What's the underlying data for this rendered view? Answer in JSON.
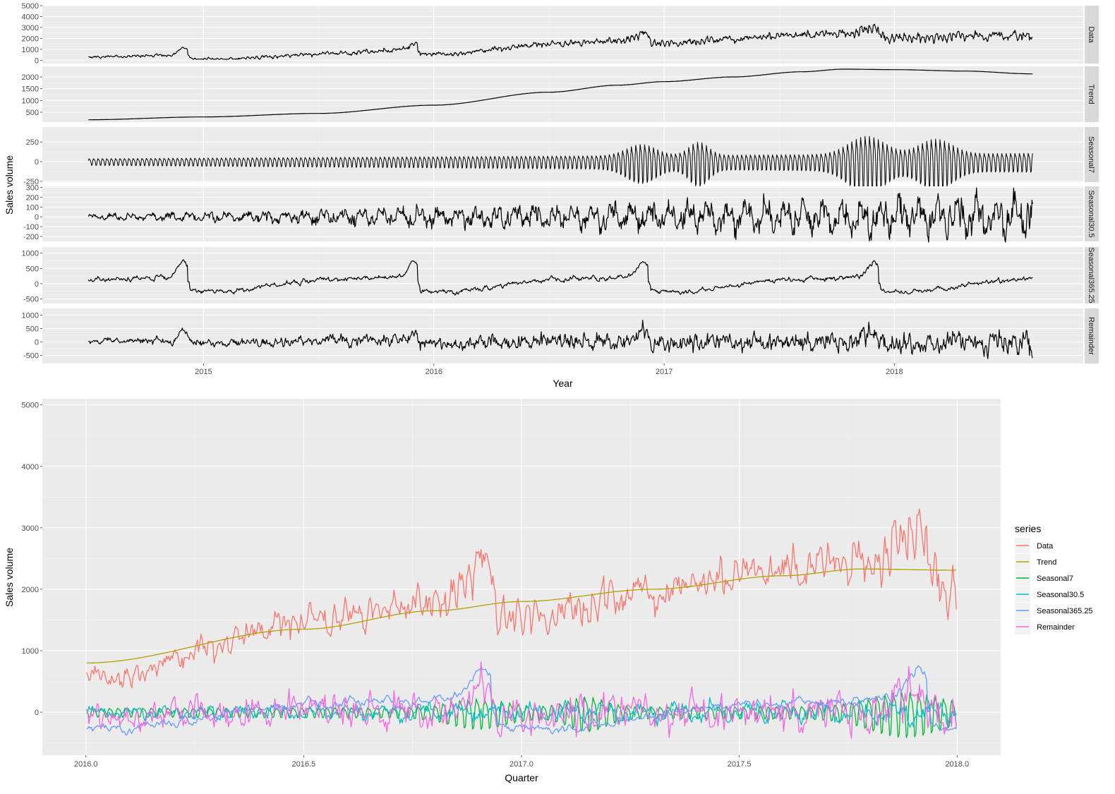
{
  "chart_data": [
    {
      "type": "line",
      "facets": [
        {
          "strip": "Data",
          "ylim": [
            -300,
            5000
          ],
          "yticks": [
            0,
            1000,
            2000,
            3000,
            4000,
            5000
          ],
          "series_key": "data"
        },
        {
          "strip": "Trend",
          "ylim": [
            80,
            2450
          ],
          "yticks": [
            500,
            1000,
            1500,
            2000
          ],
          "series_key": "trend"
        },
        {
          "strip": "Seasonal7",
          "ylim": [
            -260,
            440
          ],
          "yticks": [
            -250,
            0,
            250
          ],
          "series_key": "seasonal7"
        },
        {
          "strip": "Seasonal30.5",
          "ylim": [
            -250,
            310
          ],
          "yticks": [
            -200,
            -100,
            0,
            100,
            200,
            300
          ],
          "series_key": "seasonal30"
        },
        {
          "strip": "Seasonal365.25",
          "ylim": [
            -650,
            1200
          ],
          "yticks": [
            -500,
            0,
            500,
            1000
          ],
          "series_key": "seasonal365"
        },
        {
          "strip": "Remainder",
          "ylim": [
            -800,
            1250
          ],
          "yticks": [
            -500,
            0,
            500,
            1000
          ],
          "series_key": "remainder"
        }
      ],
      "xlim": [
        2014.3,
        2018.82
      ],
      "xticks": [
        2015,
        2016,
        2017,
        2018
      ],
      "xlabel": "Year",
      "ylabel": "Sales volume",
      "x_start": 2014.5,
      "x_end": 2018.6
    },
    {
      "type": "line",
      "xlim": [
        2015.9,
        2018.1
      ],
      "xticks": [
        "2016.0",
        "2016.5",
        "2017.0",
        "2017.5",
        "2018.0"
      ],
      "ylim": [
        -700,
        5100
      ],
      "yticks": [
        0,
        1000,
        2000,
        3000,
        4000,
        5000
      ],
      "xlabel": "Quarter",
      "ylabel": "Sales volume",
      "x_start": 2016.0,
      "x_end": 2018.0,
      "legend_title": "series",
      "legend_position": "right",
      "series": [
        {
          "name": "Data",
          "color": "#F8766D",
          "key": "data"
        },
        {
          "name": "Trend",
          "color": "#B79F00",
          "key": "trend"
        },
        {
          "name": "Seasonal7",
          "color": "#00BA38",
          "key": "seasonal7"
        },
        {
          "name": "Seasonal30.5",
          "color": "#00BFC4",
          "key": "seasonal30"
        },
        {
          "name": "Seasonal365.25",
          "color": "#619CFF",
          "key": "seasonal365"
        },
        {
          "name": "Remainder",
          "color": "#F564E3",
          "key": "remainder"
        }
      ]
    }
  ],
  "trend_knots": {
    "x": [
      2014.5,
      2015.0,
      2015.5,
      2016.0,
      2016.5,
      2016.8,
      2017.0,
      2017.3,
      2017.6,
      2017.78,
      2018.0,
      2018.3,
      2018.6
    ],
    "y": [
      180,
      300,
      450,
      800,
      1350,
      1650,
      1800,
      2000,
      2220,
      2330,
      2310,
      2250,
      2130
    ]
  }
}
